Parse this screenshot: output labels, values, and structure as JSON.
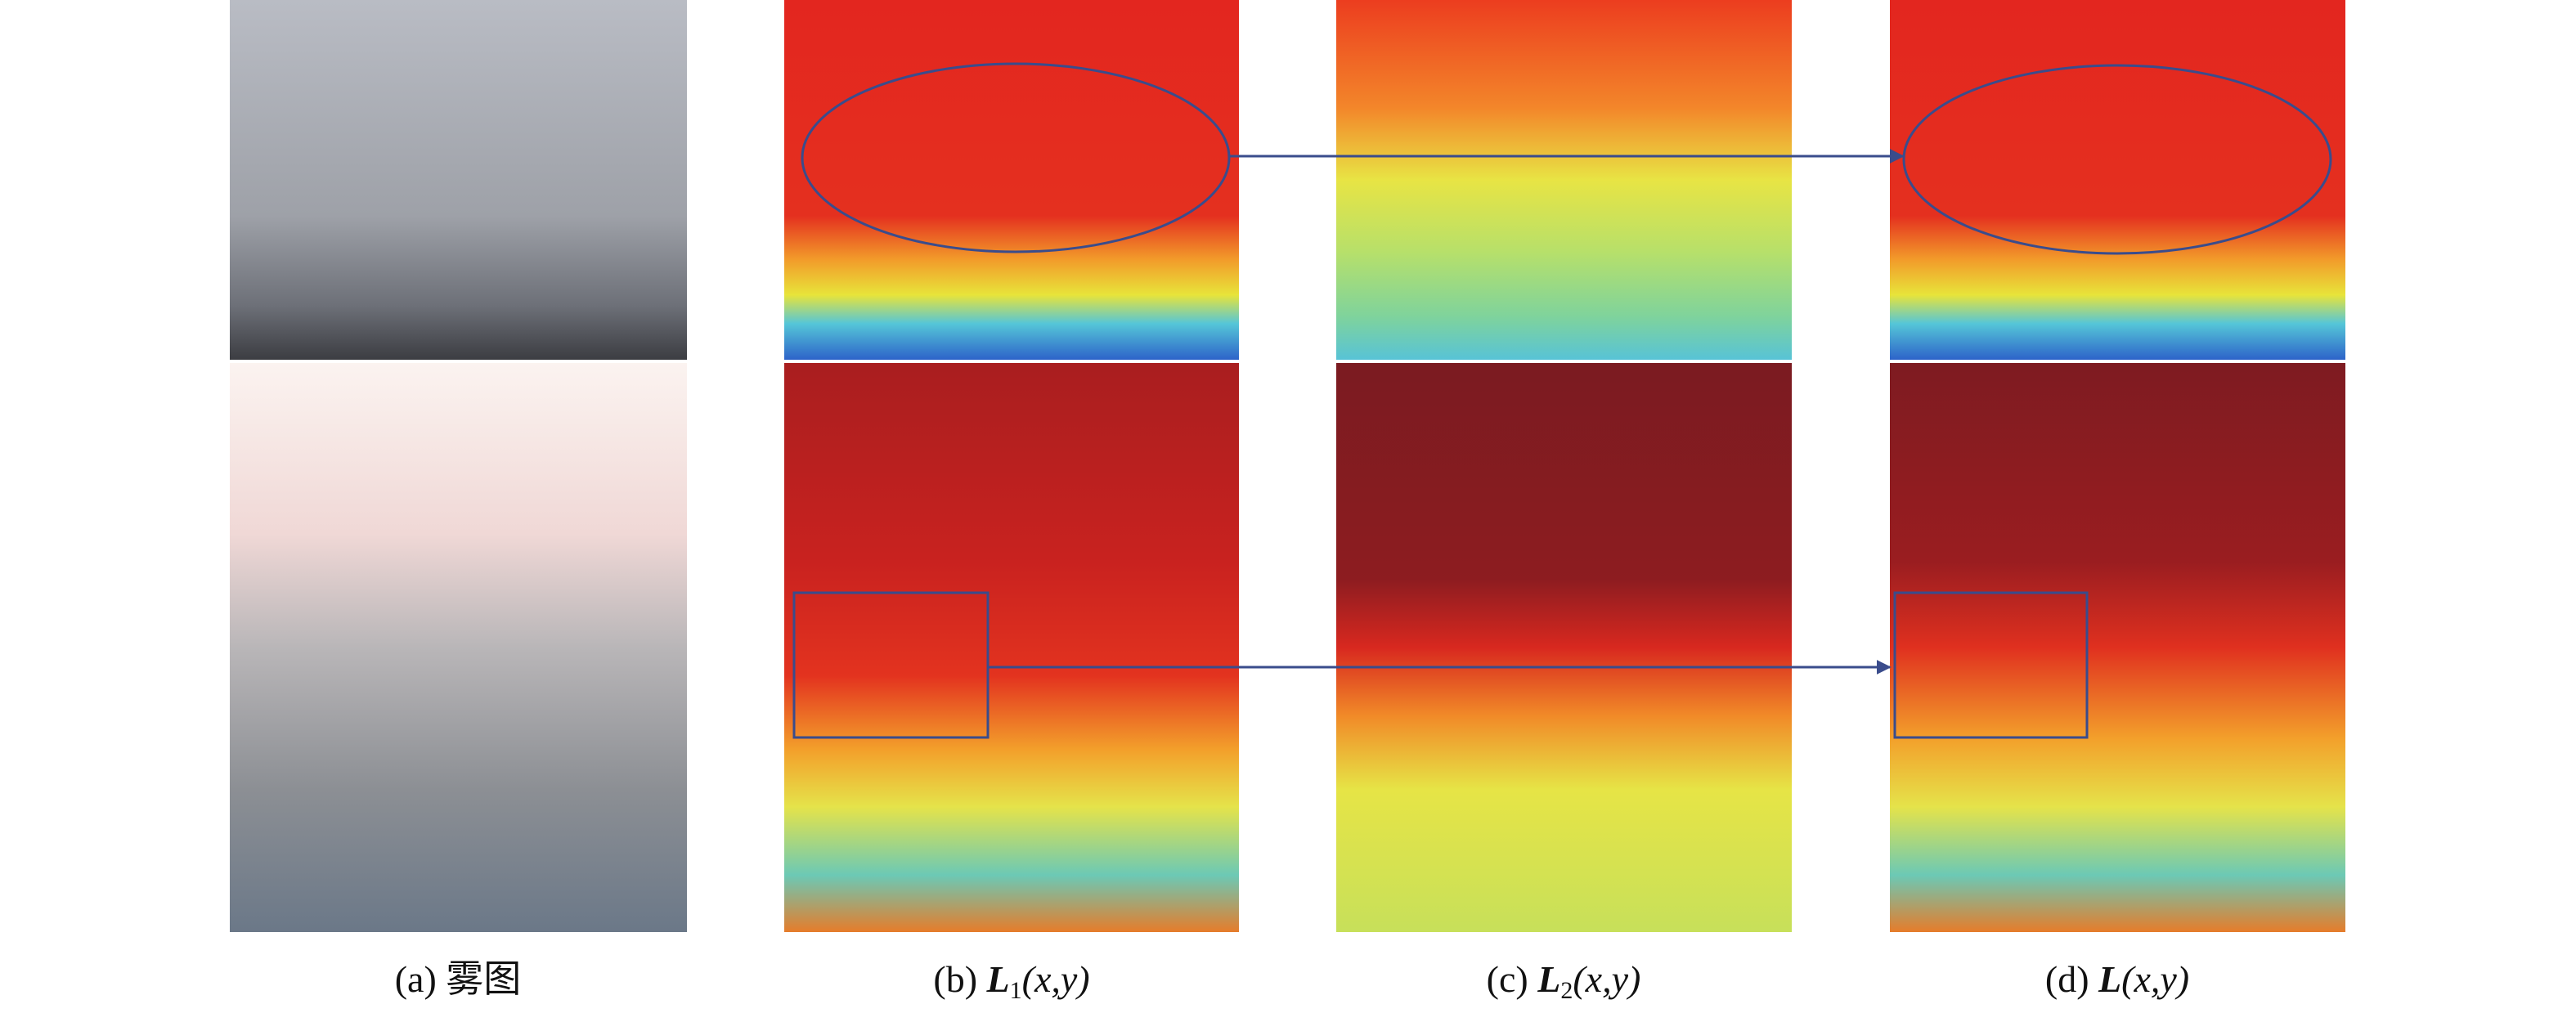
{
  "figure": {
    "captions": [
      {
        "label": "(a)",
        "text": "雾图"
      },
      {
        "label": "(b)",
        "symbol": "L",
        "subscript": "1",
        "args": "(x,y)"
      },
      {
        "label": "(c)",
        "symbol": "L",
        "subscript": "2",
        "args": "(x,y)"
      },
      {
        "label": "(d)",
        "symbol": "L",
        "args": "(x,y)"
      }
    ]
  }
}
